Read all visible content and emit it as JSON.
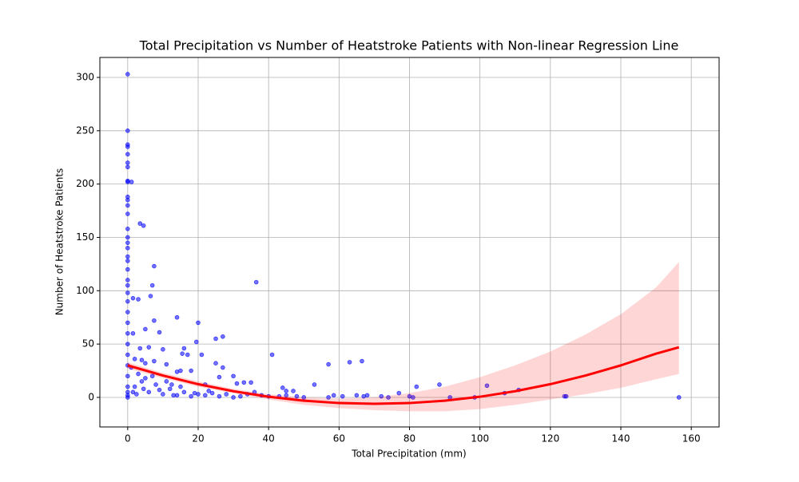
{
  "chart_data": {
    "type": "scatter",
    "title": "Total Precipitation vs Number of Heatstroke Patients with Non-linear Regression Line",
    "x_label": "Total Precipitation (mm)",
    "y_label": "Number of Heatstroke Patients",
    "xlim": [
      -7.9,
      167.9
    ],
    "ylim": [
      -27.7,
      318.7
    ],
    "xticks": [
      0,
      20,
      40,
      60,
      80,
      100,
      120,
      140,
      160
    ],
    "yticks": [
      0,
      50,
      100,
      150,
      200,
      250,
      300
    ],
    "grid": true,
    "points": {
      "color": "#0000ff",
      "x": [
        0,
        0,
        0,
        0,
        0,
        0,
        0,
        0,
        0,
        0,
        0,
        0,
        0,
        0,
        0,
        0,
        0,
        0,
        0,
        0,
        0,
        0,
        0,
        0,
        0,
        0,
        0,
        0,
        0,
        0,
        0,
        0,
        0,
        0,
        0,
        1.1,
        3.5,
        4.5,
        7.5,
        7,
        6.5,
        3,
        1.5,
        36.5,
        14,
        20,
        7.5,
        5,
        9,
        1.5,
        19.5,
        27,
        25,
        16,
        10,
        6,
        3.5,
        17,
        15.5,
        21,
        41,
        2,
        4,
        7.5,
        5,
        66.5,
        63,
        57,
        11,
        15,
        14,
        18,
        22,
        25,
        27,
        30,
        26,
        35,
        33,
        31,
        44,
        45,
        47,
        53,
        88.5,
        82,
        77,
        102,
        107,
        111,
        124,
        124.5,
        156.5,
        91.5,
        98.5,
        80,
        81,
        72,
        74,
        67,
        68,
        65,
        61,
        58.5,
        57,
        50,
        48,
        45,
        43,
        40,
        38,
        36,
        34,
        32,
        30,
        28,
        26,
        24,
        22,
        20,
        18,
        16,
        14,
        12,
        10,
        8,
        6,
        4,
        3,
        2,
        1,
        5,
        9,
        11,
        13,
        15,
        19,
        23,
        2.5,
        1.5,
        7,
        4.5,
        12.5
      ],
      "y": [
        303,
        250,
        237,
        235,
        228,
        220,
        216,
        203,
        202,
        188,
        185,
        180,
        172,
        158,
        150,
        145,
        140,
        132,
        128,
        120,
        110,
        105,
        98,
        90,
        80,
        70,
        60,
        50,
        40,
        30,
        20,
        10,
        5,
        2,
        0,
        202,
        163,
        161,
        123,
        105,
        95,
        92,
        93,
        108,
        75,
        70,
        72,
        64,
        61,
        60,
        52,
        57,
        55,
        46,
        45,
        47,
        46,
        40,
        41,
        40,
        40,
        36,
        35,
        34,
        32,
        34,
        33,
        31,
        31,
        25,
        24,
        25,
        12,
        32,
        28,
        20,
        19,
        14,
        14,
        13,
        9,
        6,
        6,
        12,
        12,
        10,
        4,
        11,
        4,
        7,
        1,
        1,
        0,
        0,
        0,
        1,
        0,
        1,
        0,
        1,
        2,
        2,
        1,
        2,
        0,
        0,
        1,
        2,
        1,
        1,
        2,
        5,
        3,
        1,
        0,
        3,
        1,
        4,
        2,
        3,
        1,
        5,
        2,
        8,
        3,
        12,
        5,
        15,
        22,
        10,
        28,
        18,
        7,
        15,
        2,
        10,
        4,
        6,
        3,
        5,
        20,
        8,
        12
      ]
    },
    "regression": {
      "color": "#ff0000",
      "x": [
        0,
        10,
        20,
        30,
        40,
        50,
        60,
        70,
        80,
        90,
        100,
        110,
        120,
        130,
        140,
        150,
        156.5
      ],
      "y": [
        30,
        20.5,
        12.4,
        5.8,
        0.6,
        -3.1,
        -5.3,
        -6,
        -5.3,
        -3.1,
        0.6,
        5.8,
        12.4,
        20.5,
        30,
        41,
        47
      ],
      "band_upper": [
        33,
        23,
        15,
        8,
        3,
        0,
        -1,
        0,
        4,
        10,
        19,
        30,
        43,
        59,
        78,
        103,
        127
      ],
      "band_lower": [
        27,
        18,
        10,
        4,
        -2,
        -7,
        -10,
        -12,
        -13,
        -13,
        -11,
        -7,
        -2,
        3,
        9,
        17,
        22
      ]
    }
  }
}
